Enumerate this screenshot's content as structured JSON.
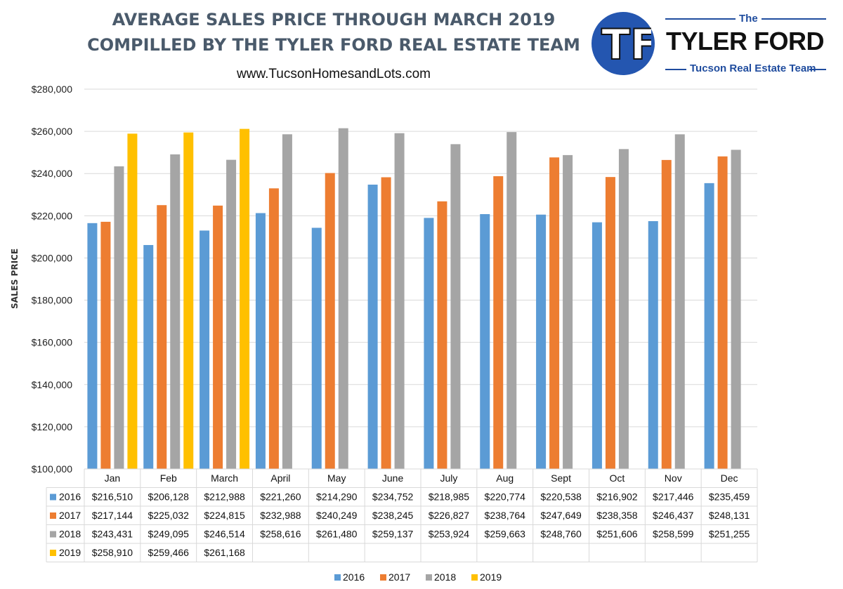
{
  "header": {
    "title_line1": "AVERAGE SALES PRICE THROUGH MARCH 2019",
    "title_line2": "COMPILLED BY THE TYLER FORD REAL ESTATE TEAM",
    "website": "www.TucsonHomesandLots.com"
  },
  "logo": {
    "letters": "TF",
    "the": "The",
    "name": "TYLER FORD",
    "tagline": "Tucson Real Estate Team"
  },
  "chart_data": {
    "type": "bar",
    "title": "AVERAGE SALES PRICE THROUGH MARCH 2019",
    "subtitle": "COMPILLED BY THE TYLER FORD REAL ESTATE TEAM",
    "xlabel": "",
    "ylabel": "SALES PRICE",
    "ylim": [
      100000,
      280000
    ],
    "yticks": [
      100000,
      120000,
      140000,
      160000,
      180000,
      200000,
      220000,
      240000,
      260000,
      280000
    ],
    "ytick_labels": [
      "$100,000",
      "$120,000",
      "$140,000",
      "$160,000",
      "$180,000",
      "$200,000",
      "$220,000",
      "$240,000",
      "$260,000",
      "$280,000"
    ],
    "grid": true,
    "legend_position": "bottom",
    "data_table": true,
    "categories": [
      "Jan",
      "Feb",
      "March",
      "April",
      "May",
      "June",
      "July",
      "Aug",
      "Sept",
      "Oct",
      "Nov",
      "Dec"
    ],
    "series": [
      {
        "name": "2016",
        "color": "#5b9bd5",
        "values": [
          216510,
          206128,
          212988,
          221260,
          214290,
          234752,
          218985,
          220774,
          220538,
          216902,
          217446,
          235459
        ],
        "labels": [
          "$216,510",
          "$206,128",
          "$212,988",
          "$221,260",
          "$214,290",
          "$234,752",
          "$218,985",
          "$220,774",
          "$220,538",
          "$216,902",
          "$217,446",
          "$235,459"
        ]
      },
      {
        "name": "2017",
        "color": "#ed7d31",
        "values": [
          217144,
          225032,
          224815,
          232988,
          240249,
          238245,
          226827,
          238764,
          247649,
          238358,
          246437,
          248131
        ],
        "labels": [
          "$217,144",
          "$225,032",
          "$224,815",
          "$232,988",
          "$240,249",
          "$238,245",
          "$226,827",
          "$238,764",
          "$247,649",
          "$238,358",
          "$246,437",
          "$248,131"
        ]
      },
      {
        "name": "2018",
        "color": "#a5a5a5",
        "values": [
          243431,
          249095,
          246514,
          258616,
          261480,
          259137,
          253924,
          259663,
          248760,
          251606,
          258599,
          251255
        ],
        "labels": [
          "$243,431",
          "$249,095",
          "$246,514",
          "$258,616",
          "$261,480",
          "$259,137",
          "$253,924",
          "$259,663",
          "$248,760",
          "$251,606",
          "$258,599",
          "$251,255"
        ]
      },
      {
        "name": "2019",
        "color": "#ffc000",
        "values": [
          258910,
          259466,
          261168,
          null,
          null,
          null,
          null,
          null,
          null,
          null,
          null,
          null
        ],
        "labels": [
          "$258,910",
          "$259,466",
          "$261,168",
          "",
          "",
          "",
          "",
          "",
          "",
          "",
          "",
          ""
        ]
      }
    ]
  }
}
